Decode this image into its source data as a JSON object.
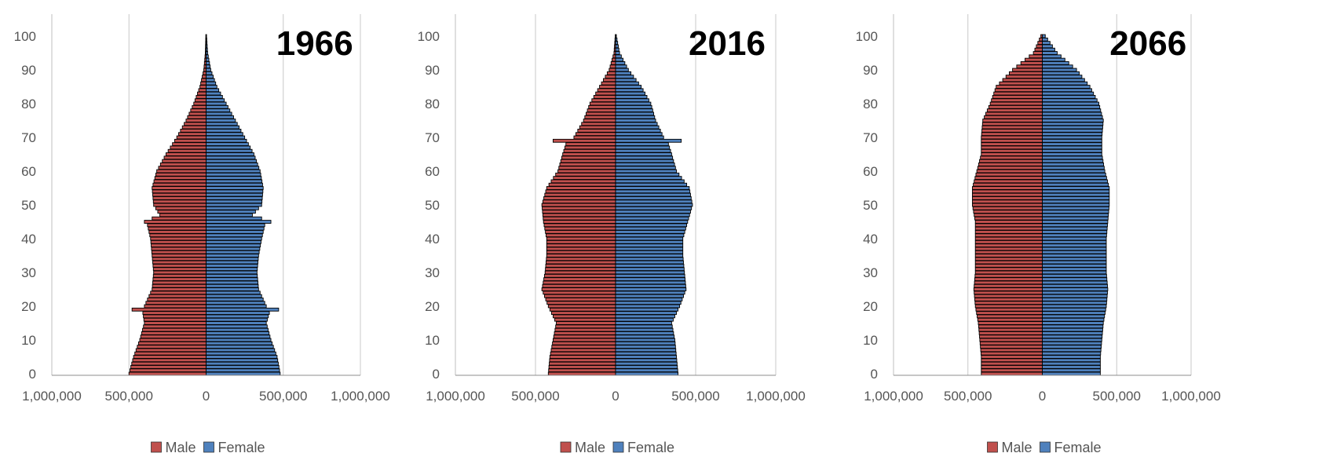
{
  "chart_data": [
    {
      "type": "bar",
      "orientation": "horizontal",
      "title": "1966",
      "xlim": [
        -1000000,
        1000000
      ],
      "ylim": [
        0,
        100
      ],
      "yticks": [
        0,
        10,
        20,
        30,
        40,
        50,
        60,
        70,
        80,
        90,
        100
      ],
      "xtick_labels": [
        "1,000,000",
        "500,000",
        "0",
        "500,000",
        "1,000,000"
      ],
      "ytick_labels": [
        "0",
        "10",
        "20",
        "30",
        "40",
        "50",
        "60",
        "70",
        "80",
        "90",
        "100"
      ],
      "legend_position": "bottom",
      "legend": [
        "Male",
        "Female"
      ],
      "series": [
        {
          "name": "Male",
          "ages": [
            0,
            5,
            10,
            15,
            18,
            19,
            20,
            25,
            30,
            35,
            40,
            44,
            45,
            47,
            50,
            55,
            60,
            65,
            70,
            75,
            80,
            85,
            90,
            95,
            100
          ],
          "values": [
            500000,
            470000,
            430000,
            400000,
            410000,
            480000,
            400000,
            350000,
            340000,
            350000,
            360000,
            380000,
            400000,
            300000,
            340000,
            350000,
            320000,
            260000,
            190000,
            130000,
            80000,
            40000,
            15000,
            5000,
            2000
          ]
        },
        {
          "name": "Female",
          "ages": [
            0,
            5,
            10,
            15,
            18,
            19,
            20,
            25,
            30,
            35,
            40,
            44,
            45,
            47,
            50,
            55,
            60,
            65,
            70,
            75,
            80,
            85,
            90,
            95,
            100
          ],
          "values": [
            480000,
            460000,
            420000,
            390000,
            410000,
            470000,
            390000,
            340000,
            330000,
            340000,
            360000,
            380000,
            420000,
            300000,
            360000,
            370000,
            350000,
            310000,
            250000,
            190000,
            130000,
            70000,
            30000,
            10000,
            3000
          ]
        }
      ],
      "colors": {
        "Male": "#c0504d",
        "Female": "#4f81bd"
      }
    },
    {
      "type": "bar",
      "orientation": "horizontal",
      "title": "2016",
      "xlim": [
        -1000000,
        1000000
      ],
      "ylim": [
        0,
        100
      ],
      "yticks": [
        0,
        10,
        20,
        30,
        40,
        50,
        60,
        70,
        80,
        90,
        100
      ],
      "xtick_labels": [
        "1,000,000",
        "500,000",
        "0",
        "500,000",
        "1,000,000"
      ],
      "ytick_labels": [
        "0",
        "10",
        "20",
        "30",
        "40",
        "50",
        "60",
        "70",
        "80",
        "90",
        "100"
      ],
      "legend_position": "bottom",
      "legend": [
        "Male",
        "Female"
      ],
      "series": [
        {
          "name": "Male",
          "ages": [
            0,
            5,
            10,
            15,
            20,
            25,
            30,
            35,
            40,
            45,
            50,
            55,
            60,
            65,
            68,
            69,
            70,
            75,
            80,
            85,
            90,
            95,
            100
          ],
          "values": [
            420000,
            410000,
            390000,
            370000,
            420000,
            460000,
            440000,
            430000,
            430000,
            450000,
            460000,
            430000,
            360000,
            330000,
            310000,
            390000,
            260000,
            200000,
            160000,
            100000,
            40000,
            10000,
            2000
          ]
        },
        {
          "name": "Female",
          "ages": [
            0,
            5,
            10,
            15,
            20,
            25,
            30,
            35,
            40,
            45,
            50,
            55,
            60,
            65,
            68,
            69,
            70,
            75,
            80,
            85,
            90,
            95,
            100
          ],
          "values": [
            390000,
            380000,
            370000,
            350000,
            400000,
            440000,
            430000,
            420000,
            420000,
            450000,
            480000,
            460000,
            380000,
            350000,
            330000,
            410000,
            300000,
            250000,
            220000,
            160000,
            80000,
            25000,
            5000
          ]
        }
      ],
      "colors": {
        "Male": "#c0504d",
        "Female": "#4f81bd"
      }
    },
    {
      "type": "bar",
      "orientation": "horizontal",
      "title": "2066",
      "xlim": [
        -1000000,
        1000000
      ],
      "ylim": [
        0,
        100
      ],
      "yticks": [
        0,
        10,
        20,
        30,
        40,
        50,
        60,
        70,
        80,
        90,
        100
      ],
      "xtick_labels": [
        "1,000,000",
        "500,000",
        "0",
        "500,000",
        "1,000,000"
      ],
      "ytick_labels": [
        "0",
        "10",
        "20",
        "30",
        "40",
        "50",
        "60",
        "70",
        "80",
        "90",
        "100"
      ],
      "legend_position": "bottom",
      "legend": [
        "Male",
        "Female"
      ],
      "series": [
        {
          "name": "Male",
          "ages": [
            0,
            5,
            10,
            15,
            20,
            25,
            30,
            35,
            40,
            45,
            50,
            55,
            60,
            65,
            70,
            75,
            80,
            85,
            90,
            95,
            100
          ],
          "values": [
            410000,
            410000,
            420000,
            430000,
            450000,
            460000,
            450000,
            450000,
            450000,
            450000,
            470000,
            470000,
            440000,
            410000,
            410000,
            400000,
            350000,
            310000,
            200000,
            60000,
            10000
          ]
        },
        {
          "name": "Female",
          "ages": [
            0,
            5,
            10,
            15,
            20,
            25,
            30,
            35,
            40,
            45,
            50,
            55,
            60,
            65,
            70,
            75,
            80,
            85,
            90,
            95,
            100
          ],
          "values": [
            390000,
            390000,
            400000,
            410000,
            430000,
            440000,
            430000,
            430000,
            430000,
            440000,
            450000,
            450000,
            420000,
            400000,
            400000,
            410000,
            380000,
            320000,
            230000,
            100000,
            20000
          ]
        }
      ],
      "colors": {
        "Male": "#c0504d",
        "Female": "#4f81bd"
      }
    }
  ]
}
